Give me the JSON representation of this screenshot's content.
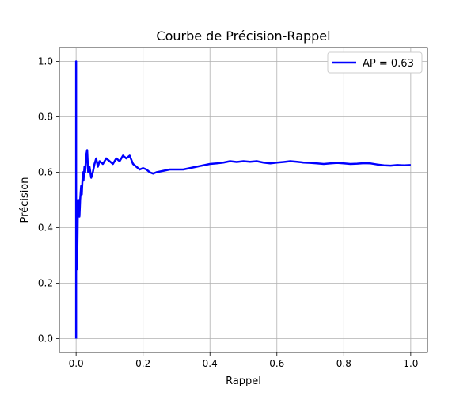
{
  "chart_data": {
    "type": "line",
    "title": "Courbe de Précision-Rappel",
    "xlabel": "Rappel",
    "ylabel": "Précision",
    "xlim": [
      -0.05,
      1.05
    ],
    "ylim": [
      -0.05,
      1.05
    ],
    "xticks": [
      0.0,
      0.2,
      0.4,
      0.6,
      0.8,
      1.0
    ],
    "yticks": [
      0.0,
      0.2,
      0.4,
      0.6,
      0.8,
      1.0
    ],
    "xtick_labels": [
      "0.0",
      "0.2",
      "0.4",
      "0.6",
      "0.8",
      "1.0"
    ],
    "ytick_labels": [
      "0.0",
      "0.2",
      "0.4",
      "0.6",
      "0.8",
      "1.0"
    ],
    "grid": true,
    "legend": {
      "position": "top-right",
      "entries": [
        "AP = 0.63"
      ]
    },
    "series": [
      {
        "name": "AP = 0.63",
        "color": "#0000ff",
        "points": [
          [
            0.0,
            0.0
          ],
          [
            0.0,
            1.0
          ],
          [
            0.0,
            0.3
          ],
          [
            0.002,
            0.5
          ],
          [
            0.003,
            0.25
          ],
          [
            0.005,
            0.45
          ],
          [
            0.007,
            0.5
          ],
          [
            0.01,
            0.44
          ],
          [
            0.012,
            0.5
          ],
          [
            0.015,
            0.55
          ],
          [
            0.017,
            0.52
          ],
          [
            0.02,
            0.6
          ],
          [
            0.022,
            0.57
          ],
          [
            0.025,
            0.62
          ],
          [
            0.027,
            0.6
          ],
          [
            0.03,
            0.66
          ],
          [
            0.033,
            0.68
          ],
          [
            0.036,
            0.6
          ],
          [
            0.04,
            0.62
          ],
          [
            0.045,
            0.58
          ],
          [
            0.05,
            0.6
          ],
          [
            0.055,
            0.63
          ],
          [
            0.06,
            0.65
          ],
          [
            0.065,
            0.62
          ],
          [
            0.07,
            0.64
          ],
          [
            0.08,
            0.63
          ],
          [
            0.09,
            0.65
          ],
          [
            0.1,
            0.64
          ],
          [
            0.11,
            0.63
          ],
          [
            0.12,
            0.65
          ],
          [
            0.13,
            0.64
          ],
          [
            0.14,
            0.66
          ],
          [
            0.15,
            0.65
          ],
          [
            0.16,
            0.66
          ],
          [
            0.17,
            0.63
          ],
          [
            0.18,
            0.62
          ],
          [
            0.19,
            0.61
          ],
          [
            0.2,
            0.615
          ],
          [
            0.21,
            0.61
          ],
          [
            0.22,
            0.6
          ],
          [
            0.23,
            0.595
          ],
          [
            0.24,
            0.6
          ],
          [
            0.26,
            0.605
          ],
          [
            0.28,
            0.61
          ],
          [
            0.3,
            0.61
          ],
          [
            0.32,
            0.61
          ],
          [
            0.34,
            0.615
          ],
          [
            0.36,
            0.62
          ],
          [
            0.38,
            0.625
          ],
          [
            0.4,
            0.63
          ],
          [
            0.42,
            0.632
          ],
          [
            0.44,
            0.635
          ],
          [
            0.46,
            0.64
          ],
          [
            0.48,
            0.637
          ],
          [
            0.5,
            0.64
          ],
          [
            0.52,
            0.638
          ],
          [
            0.54,
            0.64
          ],
          [
            0.56,
            0.635
          ],
          [
            0.58,
            0.632
          ],
          [
            0.6,
            0.635
          ],
          [
            0.62,
            0.637
          ],
          [
            0.64,
            0.64
          ],
          [
            0.66,
            0.638
          ],
          [
            0.68,
            0.635
          ],
          [
            0.7,
            0.634
          ],
          [
            0.72,
            0.632
          ],
          [
            0.74,
            0.63
          ],
          [
            0.76,
            0.632
          ],
          [
            0.78,
            0.634
          ],
          [
            0.8,
            0.632
          ],
          [
            0.82,
            0.63
          ],
          [
            0.84,
            0.631
          ],
          [
            0.86,
            0.633
          ],
          [
            0.88,
            0.632
          ],
          [
            0.9,
            0.628
          ],
          [
            0.92,
            0.625
          ],
          [
            0.94,
            0.624
          ],
          [
            0.96,
            0.626
          ],
          [
            0.98,
            0.625
          ],
          [
            1.0,
            0.626
          ]
        ]
      }
    ]
  }
}
